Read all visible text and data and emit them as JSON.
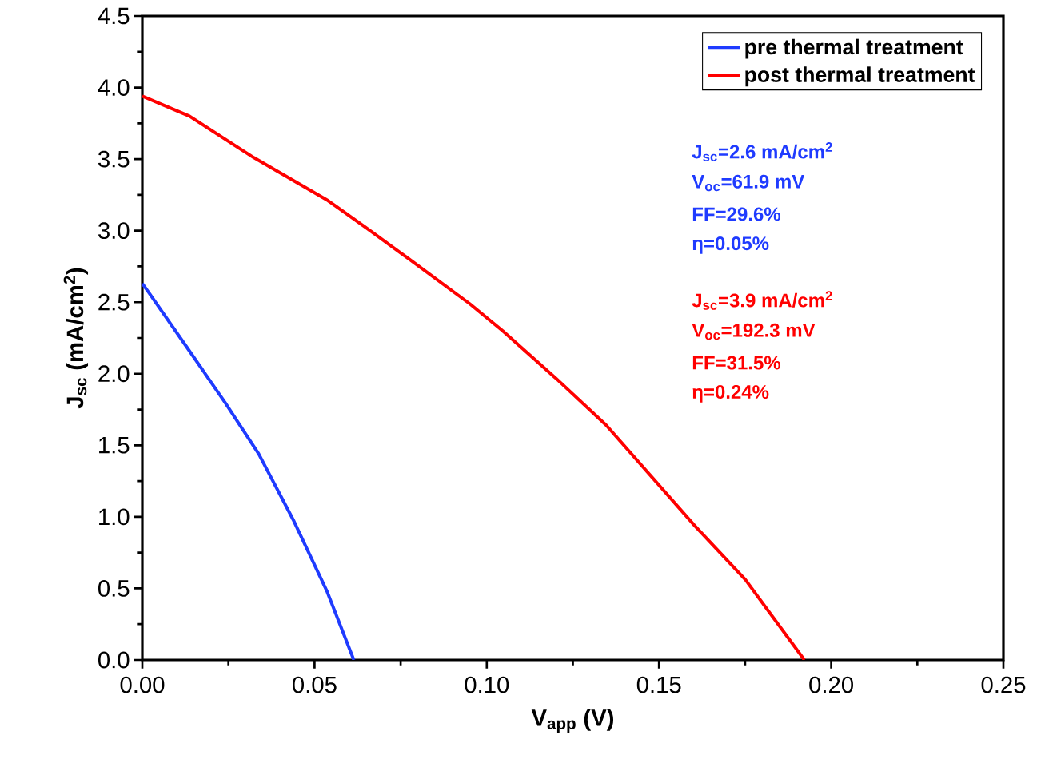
{
  "chart_data": {
    "type": "line",
    "xlabel": "V$_{app}$ (V)",
    "ylabel": "J$_{sc}$ (mA/cm$^{2}$)",
    "xlim": [
      0,
      0.25
    ],
    "ylim": [
      0,
      4.5
    ],
    "xticks": [
      {
        "value": 0,
        "label": "0.00"
      },
      {
        "value": 0.05,
        "label": "0.05"
      },
      {
        "value": 0.1,
        "label": "0.10"
      },
      {
        "value": 0.15,
        "label": "0.15"
      },
      {
        "value": 0.2,
        "label": "0.20"
      },
      {
        "value": 0.25,
        "label": "0.25"
      }
    ],
    "yticks": [
      {
        "value": 0,
        "label": "0.0"
      },
      {
        "value": 0.5,
        "label": "0.5"
      },
      {
        "value": 1,
        "label": "1.0"
      },
      {
        "value": 1.5,
        "label": "1.5"
      },
      {
        "value": 2,
        "label": "2.0"
      },
      {
        "value": 2.5,
        "label": "2.5"
      },
      {
        "value": 3,
        "label": "3.0"
      },
      {
        "value": 3.5,
        "label": "3.5"
      },
      {
        "value": 4,
        "label": "4.0"
      },
      {
        "value": 4.5,
        "label": "4.5"
      }
    ],
    "legend": "top right",
    "series": [
      {
        "name": "pre thermal treatment",
        "color": "#1f3bff",
        "x": [
          0,
          0.0018,
          0.0128,
          0.024,
          0.0338,
          0.0438,
          0.0537,
          0.0614
        ],
        "values": [
          2.63,
          2.57,
          2.19,
          1.8,
          1.44,
          0.98,
          0.475,
          0
        ]
      },
      {
        "name": "post thermal treatment",
        "color": "#ff0000",
        "x": [
          0,
          0.0137,
          0.0324,
          0.0539,
          0.065,
          0.0747,
          0.095,
          0.1046,
          0.12,
          0.1347,
          0.1603,
          0.1751,
          0.1922
        ],
        "values": [
          3.94,
          3.8,
          3.51,
          3.21,
          3.02,
          2.85,
          2.49,
          2.3,
          1.97,
          1.64,
          0.94,
          0.56,
          0
        ]
      }
    ],
    "annotations": [
      "J$_{sc}$=2.6 mA/cm$^{2}$",
      "V$_{oc}$=61.9 mV",
      "FF=29.6%",
      "η=0.05%",
      "J$_{sc}$=3.9 mA/cm$^{2}$",
      "V$_{oc}$=192.3 mV",
      "FF=31.5%",
      "η=0.24%"
    ]
  }
}
